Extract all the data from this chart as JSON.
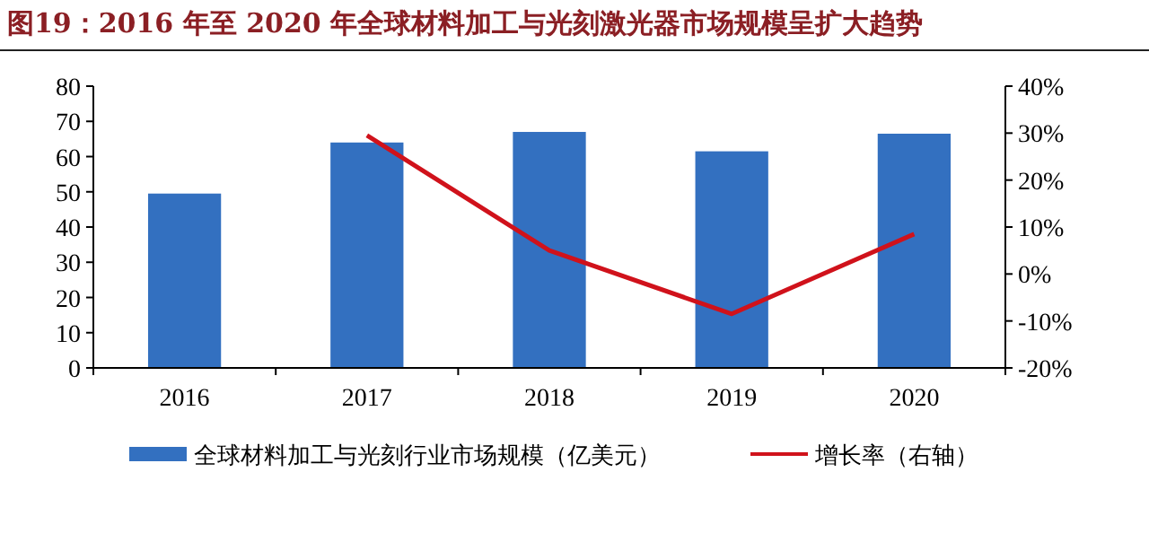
{
  "chart_data": {
    "type": "bar",
    "title": "图19：2016 年至 2020 年全球材料加工与光刻激光器市场规模呈扩大趋势",
    "categories": [
      "2016",
      "2017",
      "2018",
      "2019",
      "2020"
    ],
    "series": [
      {
        "name": "全球材料加工与光刻行业市场规模（亿美元）",
        "color": "#3370c0",
        "values": [
          49.5,
          64,
          67,
          61.5,
          66.5
        ]
      },
      {
        "name": "增长率（右轴）",
        "type": "line",
        "axis": "y2",
        "color": "#d0121b",
        "values": [
          null,
          29.5,
          5,
          -8.5,
          8.5
        ]
      }
    ],
    "ylim": [
      0,
      80
    ],
    "yticks": [
      0,
      10,
      20,
      30,
      40,
      50,
      60,
      70,
      80
    ],
    "y2lim": [
      -20,
      40
    ],
    "y2ticks": [
      {
        "value": -20,
        "label": "-20%"
      },
      {
        "value": -10,
        "label": "-10%"
      },
      {
        "value": 0,
        "label": "0%"
      },
      {
        "value": 10,
        "label": "10%"
      },
      {
        "value": 20,
        "label": "20%"
      },
      {
        "value": 30,
        "label": "30%"
      },
      {
        "value": 40,
        "label": "40%"
      }
    ],
    "legend": "bottom",
    "grid": false
  }
}
